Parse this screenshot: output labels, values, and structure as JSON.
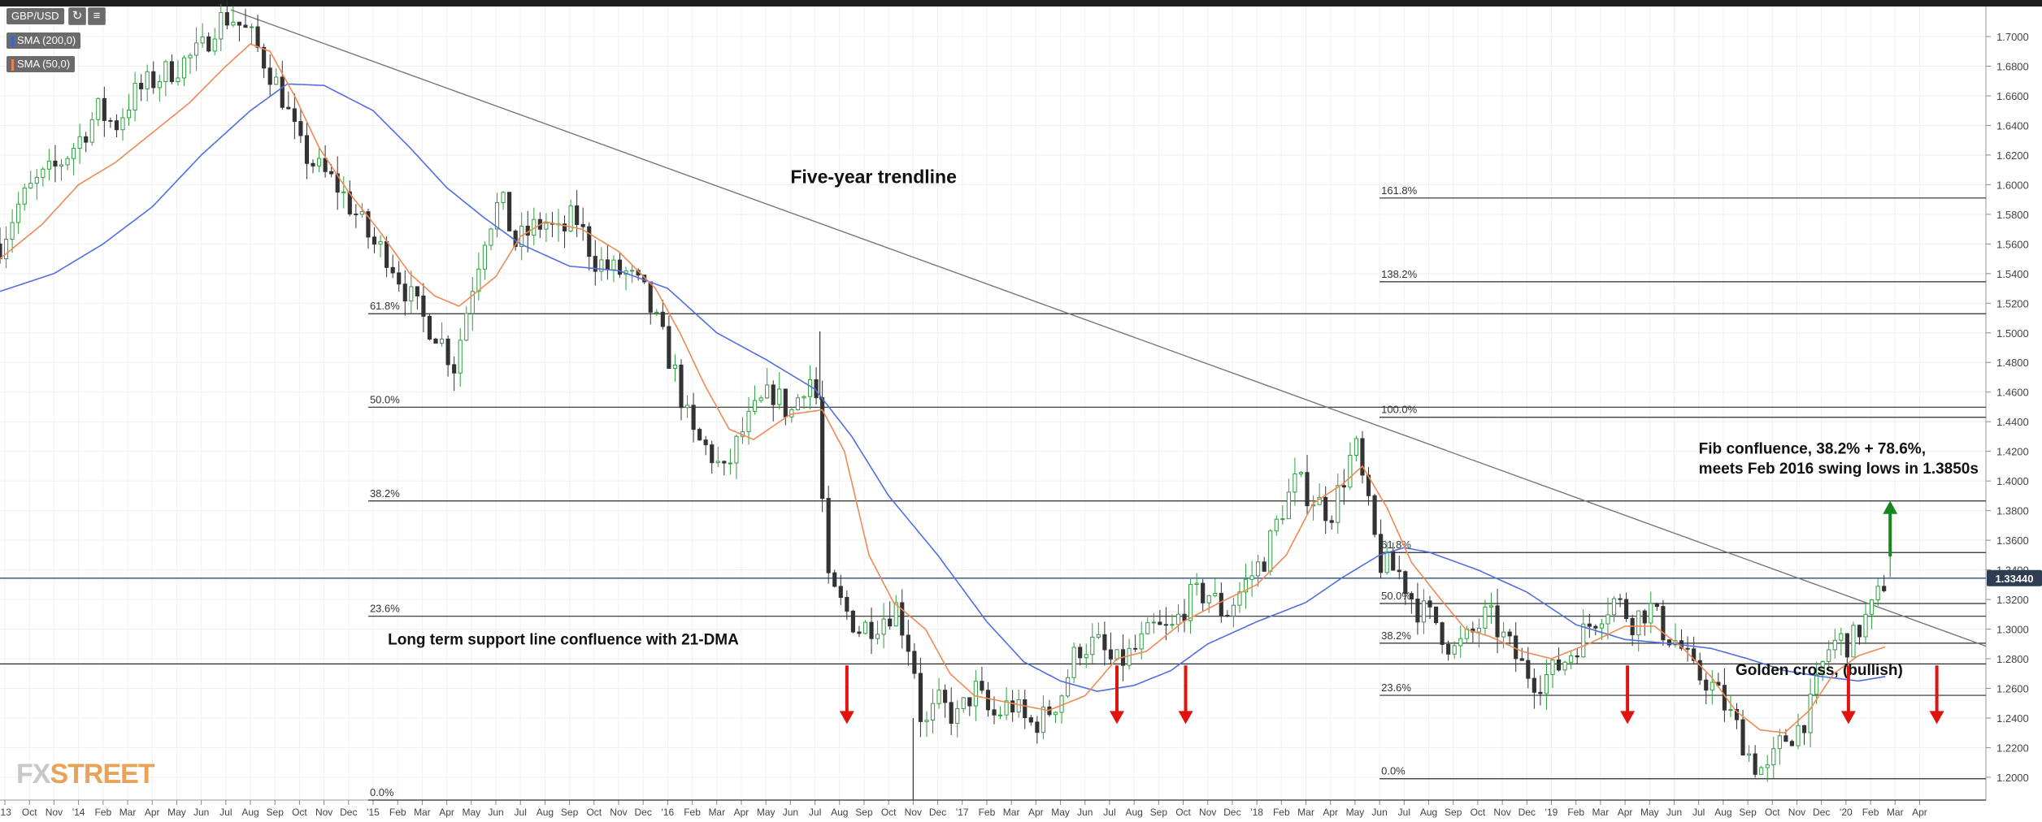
{
  "toolbar": {
    "symbol": "GBP/USD",
    "refresh_icon": "refresh-icon",
    "settings_icon": "bar-settings-icon"
  },
  "legend": [
    {
      "label": "SMA (200,0)",
      "color": "#3b63d9"
    },
    {
      "label": "SMA (50,0)",
      "color": "#e8834e"
    }
  ],
  "logo": {
    "text_a": "FX",
    "text_b": "STREET"
  },
  "colors": {
    "candle_up": "#2f9e3f",
    "candle_down": "#333333",
    "sma200": "#4f6fe0",
    "sma50": "#ee8a55",
    "trendline": "#777777",
    "level_line": "#2a2a2a",
    "current_price_line": "#2c4e86",
    "arrow_red": "#e0140f",
    "arrow_green": "#18861f",
    "price_tag": "#2f3d52"
  },
  "chart_data": {
    "type": "candlestick",
    "title": "",
    "symbol": "GBP/USD",
    "ylim": [
      1.1846,
      1.7181
    ],
    "y_ticks": [
      "1.7000",
      "1.6800",
      "1.6600",
      "1.6400",
      "1.6200",
      "1.6000",
      "1.5800",
      "1.5600",
      "1.5400",
      "1.5200",
      "1.5000",
      "1.4800",
      "1.4600",
      "1.4400",
      "1.4200",
      "1.4000",
      "1.3800",
      "1.3600",
      "1.3400",
      "1.3200",
      "1.3000",
      "1.2800",
      "1.2600",
      "1.2400",
      "1.2200",
      "1.2000"
    ],
    "y_tick_values": [
      1.7,
      1.68,
      1.66,
      1.64,
      1.62,
      1.6,
      1.58,
      1.56,
      1.54,
      1.52,
      1.5,
      1.48,
      1.46,
      1.44,
      1.42,
      1.4,
      1.38,
      1.36,
      1.34,
      1.32,
      1.3,
      1.28,
      1.26,
      1.24,
      1.22,
      1.2
    ],
    "x_ticks": [
      "'13",
      "Oct",
      "Nov",
      "'14",
      "Feb",
      "Mar",
      "Apr",
      "May",
      "Jun",
      "Jul",
      "Aug",
      "Sep",
      "Oct",
      "Nov",
      "Dec",
      "'15",
      "Feb",
      "Mar",
      "Apr",
      "May",
      "Jun",
      "Jul",
      "Aug",
      "Sep",
      "Oct",
      "Nov",
      "Dec",
      "'16",
      "Feb",
      "Mar",
      "Apr",
      "May",
      "Jun",
      "Jul",
      "Aug",
      "Sep",
      "Oct",
      "Nov",
      "Dec",
      "'17",
      "Feb",
      "Mar",
      "Apr",
      "May",
      "Jun",
      "Jul",
      "Aug",
      "Sep",
      "Oct",
      "Nov",
      "Dec",
      "'18",
      "Feb",
      "Mar",
      "Apr",
      "May",
      "Jun",
      "Jul",
      "Aug",
      "Sep",
      "Oct",
      "Nov",
      "Dec",
      "'19",
      "Feb",
      "Mar",
      "Apr",
      "May",
      "Jun",
      "Jul",
      "Aug",
      "Sep",
      "Oct",
      "Nov",
      "Dec",
      "'20",
      "Feb",
      "Mar",
      "Apr"
    ],
    "x_tick_index": [
      0,
      1,
      2,
      3,
      4,
      5,
      6,
      7,
      8,
      9,
      10,
      11,
      12,
      13,
      14,
      15,
      16,
      17,
      18,
      19,
      20,
      21,
      22,
      23,
      24,
      25,
      26,
      27,
      28,
      29,
      30,
      31,
      32,
      33,
      34,
      35,
      36,
      37,
      38,
      39,
      40,
      41,
      42,
      43,
      44,
      45,
      46,
      47,
      48,
      49,
      50,
      51,
      52,
      53,
      54,
      55,
      56,
      57,
      58,
      59,
      60,
      61,
      62,
      63,
      64,
      65,
      66,
      67,
      68,
      69,
      70,
      71,
      72,
      73,
      74,
      75,
      76,
      77,
      78
    ],
    "x_range": [
      -0.2,
      80.7
    ],
    "current_price": 1.3344,
    "current_price_label": "1.33440",
    "candle_anchors": [
      [
        -0.2,
        1.56
      ],
      [
        0.5,
        1.585
      ],
      [
        1.2,
        1.6
      ],
      [
        2.0,
        1.61
      ],
      [
        3.0,
        1.63
      ],
      [
        3.8,
        1.65
      ],
      [
        4.5,
        1.64
      ],
      [
        5.2,
        1.66
      ],
      [
        6.0,
        1.67
      ],
      [
        7.0,
        1.68
      ],
      [
        8.0,
        1.69
      ],
      [
        8.6,
        1.71
      ],
      [
        9.2,
        1.714
      ],
      [
        10.0,
        1.7
      ],
      [
        10.7,
        1.68
      ],
      [
        11.3,
        1.66
      ],
      [
        12.0,
        1.625
      ],
      [
        12.8,
        1.61
      ],
      [
        13.5,
        1.6
      ],
      [
        14.3,
        1.58
      ],
      [
        15.0,
        1.56
      ],
      [
        15.6,
        1.553
      ],
      [
        16.3,
        1.53
      ],
      [
        17.0,
        1.51
      ],
      [
        17.6,
        1.5
      ],
      [
        18.3,
        1.478
      ],
      [
        19.0,
        1.53
      ],
      [
        19.6,
        1.57
      ],
      [
        20.2,
        1.59
      ],
      [
        20.8,
        1.56
      ],
      [
        21.5,
        1.57
      ],
      [
        22.0,
        1.575
      ],
      [
        22.6,
        1.565
      ],
      [
        23.2,
        1.58
      ],
      [
        24.0,
        1.55
      ],
      [
        24.7,
        1.542
      ],
      [
        25.3,
        1.54
      ],
      [
        26.0,
        1.528
      ],
      [
        26.7,
        1.5
      ],
      [
        27.3,
        1.472
      ],
      [
        28.0,
        1.43
      ],
      [
        28.7,
        1.42
      ],
      [
        29.3,
        1.404
      ],
      [
        30.0,
        1.432
      ],
      [
        30.7,
        1.45
      ],
      [
        31.3,
        1.46
      ],
      [
        32.0,
        1.445
      ],
      [
        32.6,
        1.468
      ],
      [
        33.0,
        1.47
      ],
      [
        33.5,
        1.33
      ],
      [
        34.0,
        1.318
      ],
      [
        34.8,
        1.3
      ],
      [
        35.5,
        1.305
      ],
      [
        36.3,
        1.315
      ],
      [
        37.0,
        1.28
      ],
      [
        37.4,
        1.23
      ],
      [
        38.0,
        1.25
      ],
      [
        38.8,
        1.24
      ],
      [
        39.5,
        1.26
      ],
      [
        40.2,
        1.24
      ],
      [
        41.0,
        1.25
      ],
      [
        41.7,
        1.235
      ],
      [
        42.3,
        1.24
      ],
      [
        43.0,
        1.255
      ],
      [
        43.7,
        1.288
      ],
      [
        44.5,
        1.29
      ],
      [
        45.2,
        1.275
      ],
      [
        46.0,
        1.285
      ],
      [
        46.8,
        1.3
      ],
      [
        47.5,
        1.298
      ],
      [
        48.2,
        1.32
      ],
      [
        49.0,
        1.325
      ],
      [
        49.7,
        1.31
      ],
      [
        50.5,
        1.33
      ],
      [
        51.3,
        1.348
      ],
      [
        52.0,
        1.38
      ],
      [
        52.6,
        1.4
      ],
      [
        53.2,
        1.39
      ],
      [
        54.0,
        1.378
      ],
      [
        54.6,
        1.405
      ],
      [
        55.0,
        1.425
      ],
      [
        55.3,
        1.4
      ],
      [
        56.0,
        1.345
      ],
      [
        56.8,
        1.338
      ],
      [
        57.5,
        1.315
      ],
      [
        58.3,
        1.305
      ],
      [
        59.0,
        1.285
      ],
      [
        59.7,
        1.295
      ],
      [
        60.4,
        1.31
      ],
      [
        61.2,
        1.29
      ],
      [
        61.8,
        1.275
      ],
      [
        62.4,
        1.265
      ],
      [
        63.0,
        1.27
      ],
      [
        63.7,
        1.282
      ],
      [
        64.4,
        1.3
      ],
      [
        65.0,
        1.312
      ],
      [
        65.6,
        1.32
      ],
      [
        66.3,
        1.306
      ],
      [
        67.0,
        1.315
      ],
      [
        67.6,
        1.298
      ],
      [
        68.2,
        1.29
      ],
      [
        68.8,
        1.27
      ],
      [
        69.4,
        1.265
      ],
      [
        70.0,
        1.25
      ],
      [
        70.6,
        1.232
      ],
      [
        71.2,
        1.21
      ],
      [
        71.8,
        1.203
      ],
      [
        72.4,
        1.225
      ],
      [
        73.0,
        1.232
      ],
      [
        73.6,
        1.248
      ],
      [
        74.2,
        1.285
      ],
      [
        74.7,
        1.293
      ],
      [
        75.2,
        1.29
      ],
      [
        75.6,
        1.302
      ],
      [
        76.0,
        1.311
      ],
      [
        76.4,
        1.325
      ],
      [
        76.6,
        1.334
      ]
    ],
    "sma200_anchors": [
      [
        -0.2,
        1.528
      ],
      [
        2,
        1.54
      ],
      [
        4,
        1.56
      ],
      [
        6,
        1.585
      ],
      [
        8,
        1.62
      ],
      [
        10,
        1.65
      ],
      [
        11.5,
        1.668
      ],
      [
        13,
        1.667
      ],
      [
        15,
        1.65
      ],
      [
        16.5,
        1.625
      ],
      [
        18,
        1.598
      ],
      [
        19.5,
        1.578
      ],
      [
        21,
        1.56
      ],
      [
        23,
        1.545
      ],
      [
        25,
        1.542
      ],
      [
        27,
        1.53
      ],
      [
        29,
        1.5
      ],
      [
        31,
        1.482
      ],
      [
        33,
        1.462
      ],
      [
        34.5,
        1.43
      ],
      [
        36,
        1.39
      ],
      [
        38,
        1.35
      ],
      [
        40,
        1.305
      ],
      [
        41.5,
        1.278
      ],
      [
        43,
        1.265
      ],
      [
        44.5,
        1.258
      ],
      [
        46,
        1.262
      ],
      [
        47.5,
        1.272
      ],
      [
        49,
        1.29
      ],
      [
        51,
        1.305
      ],
      [
        53,
        1.318
      ],
      [
        54.5,
        1.335
      ],
      [
        56,
        1.35
      ],
      [
        57,
        1.355
      ],
      [
        58,
        1.352
      ],
      [
        60,
        1.34
      ],
      [
        62,
        1.325
      ],
      [
        64,
        1.303
      ],
      [
        66,
        1.293
      ],
      [
        68,
        1.29
      ],
      [
        69.5,
        1.287
      ],
      [
        71,
        1.28
      ],
      [
        72.5,
        1.272
      ],
      [
        74,
        1.268
      ],
      [
        75.5,
        1.265
      ],
      [
        76.6,
        1.268
      ]
    ],
    "sma50_anchors": [
      [
        -0.2,
        1.55
      ],
      [
        1.5,
        1.573
      ],
      [
        3,
        1.6
      ],
      [
        4.5,
        1.615
      ],
      [
        6,
        1.635
      ],
      [
        7.5,
        1.655
      ],
      [
        9,
        1.68
      ],
      [
        10,
        1.695
      ],
      [
        10.8,
        1.69
      ],
      [
        11.8,
        1.66
      ],
      [
        12.8,
        1.625
      ],
      [
        14,
        1.595
      ],
      [
        15.2,
        1.57
      ],
      [
        16.5,
        1.54
      ],
      [
        17.5,
        1.525
      ],
      [
        18.5,
        1.518
      ],
      [
        20,
        1.538
      ],
      [
        21,
        1.565
      ],
      [
        22,
        1.575
      ],
      [
        23.5,
        1.57
      ],
      [
        25,
        1.555
      ],
      [
        26.5,
        1.53
      ],
      [
        27.5,
        1.5
      ],
      [
        28.5,
        1.465
      ],
      [
        29.5,
        1.435
      ],
      [
        30.5,
        1.428
      ],
      [
        32,
        1.445
      ],
      [
        33.3,
        1.448
      ],
      [
        34.2,
        1.42
      ],
      [
        35.2,
        1.35
      ],
      [
        36.2,
        1.318
      ],
      [
        37.5,
        1.3
      ],
      [
        38.5,
        1.27
      ],
      [
        39.5,
        1.255
      ],
      [
        41,
        1.25
      ],
      [
        42.5,
        1.245
      ],
      [
        44,
        1.255
      ],
      [
        45.3,
        1.28
      ],
      [
        46.5,
        1.285
      ],
      [
        48,
        1.305
      ],
      [
        49.5,
        1.318
      ],
      [
        51,
        1.33
      ],
      [
        52.2,
        1.35
      ],
      [
        53.3,
        1.385
      ],
      [
        54.5,
        1.398
      ],
      [
        55.3,
        1.41
      ],
      [
        56.3,
        1.382
      ],
      [
        57.3,
        1.345
      ],
      [
        58.5,
        1.32
      ],
      [
        59.5,
        1.3
      ],
      [
        60.5,
        1.295
      ],
      [
        61.8,
        1.285
      ],
      [
        63,
        1.28
      ],
      [
        64.5,
        1.29
      ],
      [
        66,
        1.302
      ],
      [
        67.2,
        1.302
      ],
      [
        68.3,
        1.288
      ],
      [
        69.5,
        1.268
      ],
      [
        70.5,
        1.245
      ],
      [
        71.5,
        1.232
      ],
      [
        72.5,
        1.23
      ],
      [
        73.5,
        1.245
      ],
      [
        74.5,
        1.27
      ],
      [
        75.5,
        1.282
      ],
      [
        76.6,
        1.288
      ]
    ],
    "trendline": {
      "x1": 9.2,
      "y1": 1.7181,
      "x2": 80.7,
      "y2": 1.2885,
      "label": "Five-year trendline"
    },
    "fib_left": {
      "x_start": 14.8,
      "levels": [
        {
          "label": "61.8%",
          "value": 1.5129
        },
        {
          "label": "50.0%",
          "value": 1.4498
        },
        {
          "label": "38.2%",
          "value": 1.3865
        },
        {
          "label": "23.6%",
          "value": 1.3087
        },
        {
          "label": "0.0%",
          "value": 1.1846
        }
      ]
    },
    "fib_right": {
      "x_start": 56.0,
      "levels": [
        {
          "label": "161.8%",
          "value": 1.591,
          "from": 56.0
        },
        {
          "label": "138.2%",
          "value": 1.5345,
          "from": 56.0
        },
        {
          "label": "100.0%",
          "value": 1.443,
          "from": 56.0
        },
        {
          "label": "61.8%",
          "value": 1.3517,
          "from": 56.0
        },
        {
          "label": "50.0%",
          "value": 1.3173,
          "from": 56.0
        },
        {
          "label": "38.2%",
          "value": 1.2905,
          "from": 56.0
        },
        {
          "label": "23.6%",
          "value": 1.2553,
          "from": 56.0
        },
        {
          "label": "0.0%",
          "value": 1.199,
          "from": 56.0
        }
      ]
    },
    "support_line": {
      "value": 1.2765,
      "label": "Long term support line confluence with 21-DMA"
    },
    "annotations": [
      {
        "text": "Five-year trendline",
        "x": 32.0,
        "y": 1.601
      },
      {
        "text": "Long term support line confluence with 21-DMA",
        "x": 15.6,
        "y": 1.2895
      },
      {
        "text": "Fib confluence, 38.2% + 78.6%,",
        "x": 69.0,
        "y": 1.4185
      },
      {
        "text": "meets Feb 2016 swing lows in 1.3850s",
        "x": 69.0,
        "y": 1.405
      },
      {
        "text": "Golden cross, (bullish)",
        "x": 70.5,
        "y": 1.269
      }
    ],
    "red_arrows": [
      {
        "x": 34.3,
        "top": 1.2755,
        "bottom": 1.237
      },
      {
        "x": 45.3,
        "top": 1.2755,
        "bottom": 1.237
      },
      {
        "x": 48.1,
        "top": 1.2755,
        "bottom": 1.237
      },
      {
        "x": 66.1,
        "top": 1.2755,
        "bottom": 1.237
      },
      {
        "x": 75.1,
        "top": 1.2755,
        "bottom": 1.237
      },
      {
        "x": 78.7,
        "top": 1.2755,
        "bottom": 1.237
      }
    ],
    "green_arrow": {
      "x": 76.8,
      "bottom": 1.349,
      "top": 1.3865
    }
  }
}
